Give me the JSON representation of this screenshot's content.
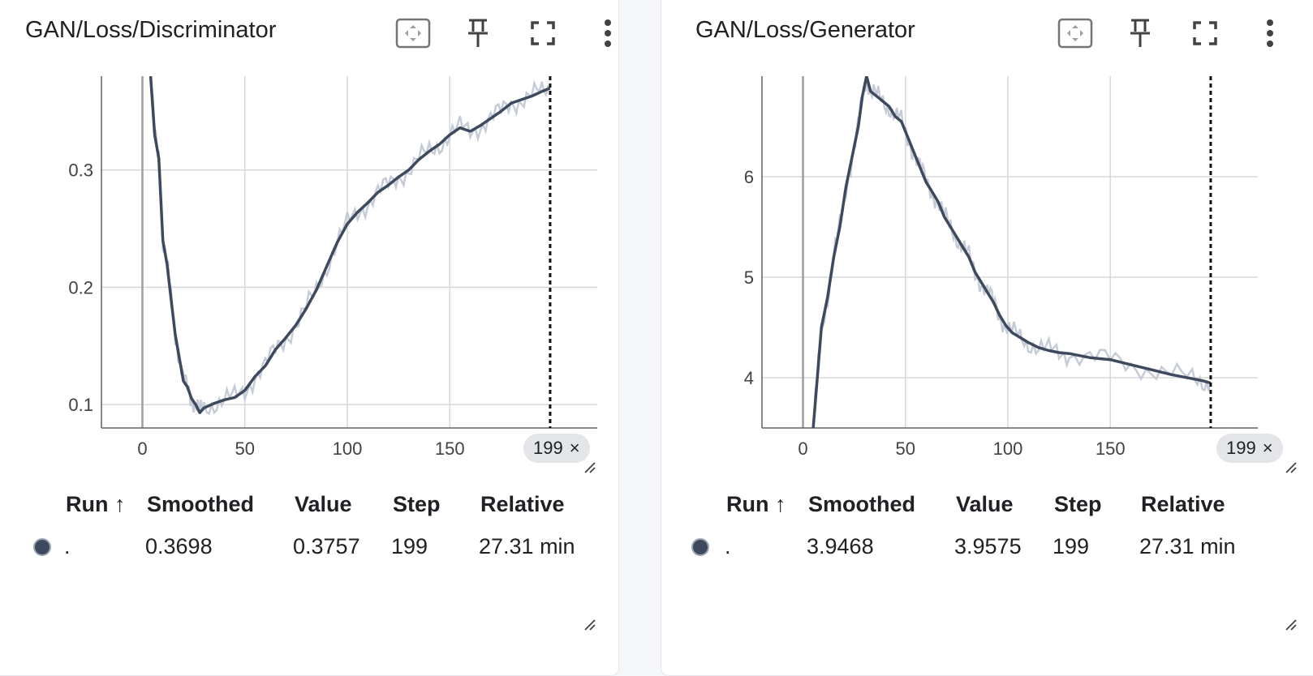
{
  "panels": [
    {
      "title": "GAN/Loss/Discriminator",
      "toolbar": {
        "fit_icon": "fit-domain-icon",
        "pin_icon": "pin-icon",
        "fullscreen_icon": "fullscreen-icon",
        "more_icon": "more-vert-icon"
      },
      "table": {
        "headers": {
          "run": "Run ↑",
          "smoothed": "Smoothed",
          "value": "Value",
          "step": "Step",
          "relative": "Relative"
        },
        "row": {
          "run": ".",
          "smoothed": "0.3698",
          "value": "0.3757",
          "step": "199",
          "relative": "27.31 min"
        }
      },
      "chart_data": {
        "type": "line",
        "xlim": [
          -20,
          222
        ],
        "ylim": [
          0.08,
          0.38
        ],
        "x_ticks": [
          "0",
          "50",
          "100",
          "150"
        ],
        "x_tick_values": [
          0,
          50,
          100,
          150
        ],
        "y_ticks": [
          "0.3",
          "0.2",
          "0.1"
        ],
        "y_tick_values": [
          0.3,
          0.2,
          0.1
        ],
        "step_marker": {
          "x": 199,
          "label": "199"
        },
        "grid": true,
        "series": [
          {
            "color": "#3d4a5e",
            "raw_color": "#c6ccd7",
            "points": [
              [
                4,
                0.38
              ],
              [
                6,
                0.33
              ],
              [
                8,
                0.31
              ],
              [
                10,
                0.24
              ],
              [
                12,
                0.22
              ],
              [
                14,
                0.19
              ],
              [
                16,
                0.16
              ],
              [
                18,
                0.14
              ],
              [
                20,
                0.12
              ],
              [
                22,
                0.115
              ],
              [
                24,
                0.105
              ],
              [
                26,
                0.1
              ],
              [
                28,
                0.093
              ],
              [
                30,
                0.097
              ],
              [
                35,
                0.101
              ],
              [
                40,
                0.104
              ],
              [
                45,
                0.106
              ],
              [
                50,
                0.112
              ],
              [
                55,
                0.124
              ],
              [
                60,
                0.133
              ],
              [
                65,
                0.147
              ],
              [
                70,
                0.157
              ],
              [
                75,
                0.168
              ],
              [
                80,
                0.182
              ],
              [
                85,
                0.198
              ],
              [
                90,
                0.218
              ],
              [
                95,
                0.238
              ],
              [
                100,
                0.254
              ],
              [
                105,
                0.264
              ],
              [
                110,
                0.272
              ],
              [
                115,
                0.281
              ],
              [
                120,
                0.287
              ],
              [
                125,
                0.294
              ],
              [
                130,
                0.3
              ],
              [
                135,
                0.309
              ],
              [
                140,
                0.316
              ],
              [
                145,
                0.322
              ],
              [
                150,
                0.33
              ],
              [
                155,
                0.336
              ],
              [
                160,
                0.333
              ],
              [
                165,
                0.338
              ],
              [
                170,
                0.344
              ],
              [
                175,
                0.35
              ],
              [
                180,
                0.357
              ],
              [
                185,
                0.36
              ],
              [
                190,
                0.363
              ],
              [
                195,
                0.367
              ],
              [
                199,
                0.3698
              ]
            ]
          }
        ]
      }
    },
    {
      "title": "GAN/Loss/Generator",
      "toolbar": {
        "fit_icon": "fit-domain-icon",
        "pin_icon": "pin-icon",
        "fullscreen_icon": "fullscreen-icon",
        "more_icon": "more-vert-icon"
      },
      "table": {
        "headers": {
          "run": "Run ↑",
          "smoothed": "Smoothed",
          "value": "Value",
          "step": "Step",
          "relative": "Relative"
        },
        "row": {
          "run": ".",
          "smoothed": "3.9468",
          "value": "3.9575",
          "step": "199",
          "relative": "27.31 min"
        }
      },
      "chart_data": {
        "type": "line",
        "xlim": [
          -20,
          222
        ],
        "ylim": [
          3.5,
          7.0
        ],
        "x_ticks": [
          "0",
          "50",
          "100",
          "150"
        ],
        "x_tick_values": [
          0,
          50,
          100,
          150
        ],
        "y_ticks": [
          "6",
          "5",
          "4"
        ],
        "y_tick_values": [
          6,
          5,
          4
        ],
        "step_marker": {
          "x": 199,
          "label": "199"
        },
        "grid": true,
        "series": [
          {
            "color": "#3d4a5e",
            "raw_color": "#c6ccd7",
            "points": [
              [
                5,
                3.5
              ],
              [
                7,
                4.0
              ],
              [
                9,
                4.5
              ],
              [
                12,
                4.8
              ],
              [
                15,
                5.2
              ],
              [
                18,
                5.5
              ],
              [
                21,
                5.9
              ],
              [
                24,
                6.2
              ],
              [
                27,
                6.5
              ],
              [
                29,
                6.8
              ],
              [
                31,
                7.0
              ],
              [
                33,
                6.85
              ],
              [
                36,
                6.8
              ],
              [
                39,
                6.75
              ],
              [
                42,
                6.7
              ],
              [
                45,
                6.6
              ],
              [
                48,
                6.55
              ],
              [
                51,
                6.4
              ],
              [
                54,
                6.25
              ],
              [
                57,
                6.1
              ],
              [
                60,
                5.95
              ],
              [
                63,
                5.85
              ],
              [
                66,
                5.75
              ],
              [
                69,
                5.6
              ],
              [
                72,
                5.5
              ],
              [
                75,
                5.4
              ],
              [
                78,
                5.3
              ],
              [
                81,
                5.2
              ],
              [
                84,
                5.05
              ],
              [
                87,
                4.95
              ],
              [
                90,
                4.85
              ],
              [
                93,
                4.75
              ],
              [
                96,
                4.62
              ],
              [
                99,
                4.52
              ],
              [
                102,
                4.45
              ],
              [
                106,
                4.4
              ],
              [
                110,
                4.35
              ],
              [
                115,
                4.3
              ],
              [
                120,
                4.27
              ],
              [
                125,
                4.25
              ],
              [
                130,
                4.24
              ],
              [
                140,
                4.2
              ],
              [
                150,
                4.18
              ],
              [
                160,
                4.13
              ],
              [
                170,
                4.08
              ],
              [
                180,
                4.03
              ],
              [
                190,
                3.99
              ],
              [
                195,
                3.97
              ],
              [
                199,
                3.9468
              ]
            ]
          }
        ]
      }
    }
  ]
}
